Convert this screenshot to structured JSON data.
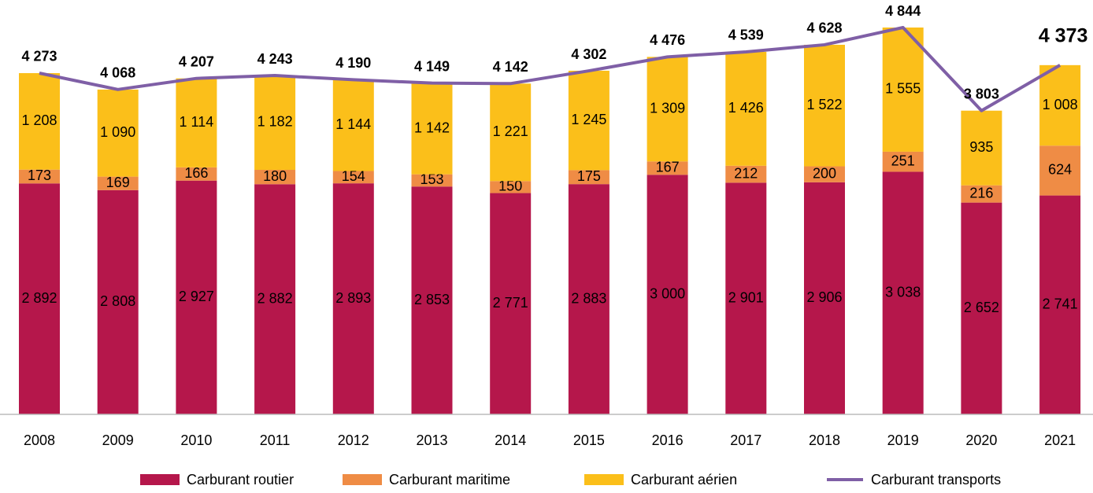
{
  "chart_data": {
    "type": "bar",
    "categories": [
      "2008",
      "2009",
      "2010",
      "2011",
      "2012",
      "2013",
      "2014",
      "2015",
      "2016",
      "2017",
      "2018",
      "2019",
      "2020",
      "2021"
    ],
    "series": [
      {
        "name": "Carburant routier",
        "color": "#b5174b",
        "values": [
          2892,
          2808,
          2927,
          2882,
          2893,
          2853,
          2771,
          2883,
          3000,
          2901,
          2906,
          3038,
          2652,
          2741
        ],
        "value_labels": [
          "2 892",
          "2 808",
          "2 927",
          "2 882",
          "2 893",
          "2 853",
          "2 771",
          "2 883",
          "3 000",
          "2 901",
          "2 906",
          "3 038",
          "2 652",
          "2 741"
        ]
      },
      {
        "name": "Carburant maritime",
        "color": "#ef8c45",
        "values": [
          173,
          169,
          166,
          180,
          154,
          153,
          150,
          175,
          167,
          212,
          200,
          251,
          216,
          624
        ],
        "value_labels": [
          "173",
          "169",
          "166",
          "180",
          "154",
          "153",
          "150",
          "175",
          "167",
          "212",
          "200",
          "251",
          "216",
          "624"
        ]
      },
      {
        "name": "Carburant aérien",
        "color": "#fbbf1a",
        "values": [
          1208,
          1090,
          1114,
          1182,
          1144,
          1142,
          1221,
          1245,
          1309,
          1426,
          1522,
          1555,
          935,
          1008
        ],
        "value_labels": [
          "1 208",
          "1 090",
          "1 114",
          "1 182",
          "1 144",
          "1 142",
          "1 221",
          "1 245",
          "1 309",
          "1 426",
          "1 522",
          "1 555",
          "935",
          "1 008"
        ]
      },
      {
        "name": "Carburant transports",
        "color": "#7f5fa6",
        "type": "line",
        "values": [
          4273,
          4068,
          4207,
          4243,
          4190,
          4149,
          4142,
          4302,
          4476,
          4539,
          4628,
          4844,
          3803,
          4373
        ],
        "value_labels": [
          "4 273",
          "4 068",
          "4 207",
          "4 243",
          "4 190",
          "4 149",
          "4 142",
          "4 302",
          "4 476",
          "4 539",
          "4 628",
          "4 844",
          "3 803",
          "4 373"
        ]
      }
    ]
  }
}
